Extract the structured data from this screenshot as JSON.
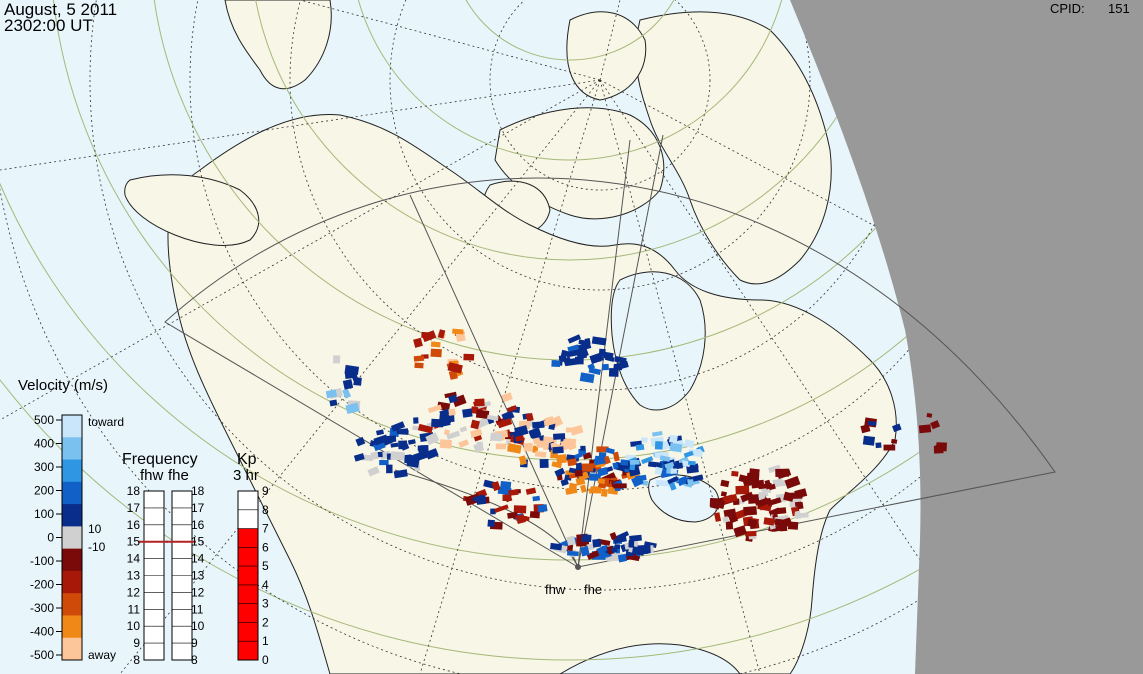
{
  "header": {
    "date": "August, 5 2011",
    "time": "2302:00 UT",
    "cpid_label": "CPID:",
    "cpid_value": "151"
  },
  "radars": {
    "west": "fhw",
    "east": "fhe"
  },
  "velocity_scale": {
    "title": "Velocity (m/s)",
    "ticks": [
      "500",
      "400",
      "300",
      "200",
      "100",
      "0",
      "-100",
      "-200",
      "-300",
      "-400",
      "-500"
    ],
    "toward_label": "toward",
    "away_label": "away",
    "ground_pos": "10",
    "ground_neg": "-10",
    "colors": [
      "#c9e6fb",
      "#7ac1f0",
      "#2f96e3",
      "#1060c8",
      "#082d8a",
      "#d0d0d0",
      "#7a0a0a",
      "#a81808",
      "#cf4a08",
      "#f08818",
      "#fcc69a"
    ]
  },
  "frequency_panel": {
    "title": "Frequency",
    "subtitle_west": "fhw",
    "subtitle_east": "fhe",
    "ticks": [
      "18",
      "17",
      "16",
      "15",
      "14",
      "13",
      "12",
      "11",
      "10",
      "9",
      "8"
    ],
    "fhw_value": 15,
    "fhe_value": 15,
    "marker_color": "#b22222"
  },
  "kp_panel": {
    "title": "Kp",
    "subtitle": "3 hr",
    "ticks": [
      "9",
      "8",
      "7",
      "6",
      "5",
      "4",
      "3",
      "2",
      "1",
      "0"
    ],
    "value": 7,
    "fill_color": "#ff0000"
  },
  "map": {
    "ocean_color": "#e8f6fc",
    "land_color": "#f8f6e6",
    "night_color": "#999999"
  }
}
